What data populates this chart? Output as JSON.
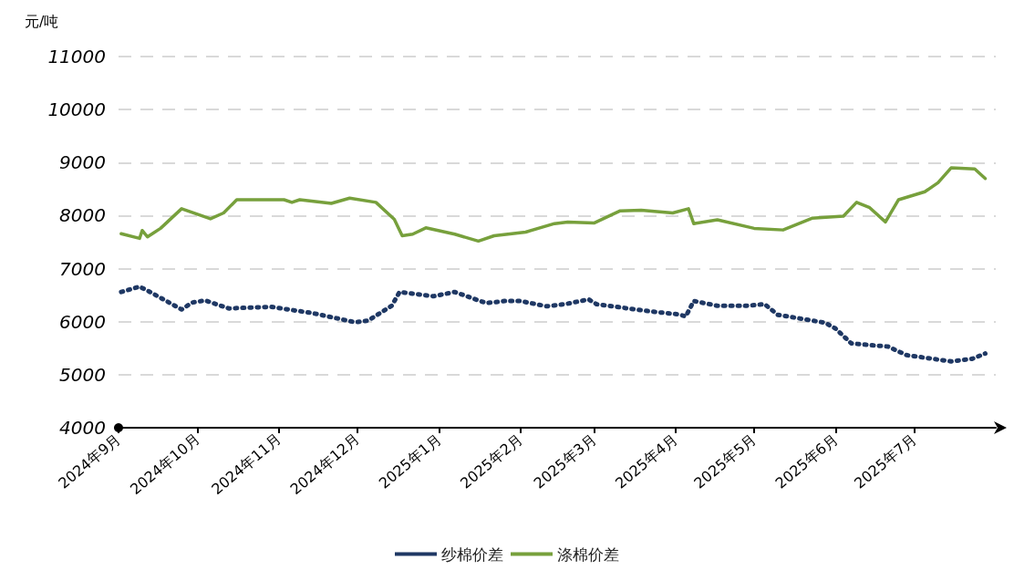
{
  "chart_data": {
    "type": "line",
    "ylabel": "元/吨",
    "ylim": [
      4000,
      11000
    ],
    "yticks": [
      4000,
      5000,
      6000,
      7000,
      8000,
      9000,
      10000,
      11000
    ],
    "xlim": [
      "2024-09-01",
      "2025-08-01"
    ],
    "xticks": [
      {
        "value": "2024-09-01",
        "label": "2024年9月"
      },
      {
        "value": "2024-10-01",
        "label": "2024年10月"
      },
      {
        "value": "2024-11-01",
        "label": "2024年11月"
      },
      {
        "value": "2024-12-01",
        "label": "2024年12月"
      },
      {
        "value": "2025-01-01",
        "label": "2025年1月"
      },
      {
        "value": "2025-02-01",
        "label": "2025年2月"
      },
      {
        "value": "2025-03-01",
        "label": "2025年3月"
      },
      {
        "value": "2025-04-01",
        "label": "2025年4月"
      },
      {
        "value": "2025-05-01",
        "label": "2025年5月"
      },
      {
        "value": "2025-06-01",
        "label": "2025年6月"
      },
      {
        "value": "2025-07-01",
        "label": "2025年7月"
      }
    ],
    "grid": "y",
    "legend": "bottom",
    "marker": "none",
    "series": [
      {
        "name": "纱棉价差",
        "color": "#1f3864",
        "line_style": "dotted",
        "x": [
          "2024-09-02",
          "2024-09-09",
          "2024-09-13",
          "2024-09-25",
          "2024-09-29",
          "2024-10-04",
          "2024-10-13",
          "2024-10-29",
          "2024-11-14",
          "2024-11-30",
          "2024-12-05",
          "2024-12-14",
          "2024-12-17",
          "2024-12-30",
          "2025-01-07",
          "2025-01-19",
          "2025-01-26",
          "2025-02-01",
          "2025-02-11",
          "2025-02-18",
          "2025-02-27",
          "2025-03-02",
          "2025-03-23",
          "2025-04-02",
          "2025-04-05",
          "2025-04-08",
          "2025-04-17",
          "2025-04-28",
          "2025-05-05",
          "2025-05-10",
          "2025-05-28",
          "2025-06-01",
          "2025-06-07",
          "2025-06-21",
          "2025-06-28",
          "2025-07-15",
          "2025-07-23",
          "2025-07-28"
        ],
        "values": [
          6560,
          6660,
          6560,
          6230,
          6360,
          6400,
          6250,
          6280,
          6160,
          5990,
          6020,
          6300,
          6560,
          6480,
          6560,
          6350,
          6390,
          6390,
          6290,
          6330,
          6420,
          6330,
          6190,
          6140,
          6100,
          6390,
          6300,
          6300,
          6330,
          6130,
          5980,
          5870,
          5590,
          5530,
          5370,
          5250,
          5300,
          5400
        ]
      },
      {
        "name": "涤棉价差",
        "color": "#77a03c",
        "line_style": "solid",
        "x": [
          "2024-09-02",
          "2024-09-09",
          "2024-09-10",
          "2024-09-12",
          "2024-09-17",
          "2024-09-25",
          "2024-10-06",
          "2024-10-11",
          "2024-10-16",
          "2024-11-03",
          "2024-11-06",
          "2024-11-09",
          "2024-11-21",
          "2024-11-28",
          "2024-12-08",
          "2024-12-15",
          "2024-12-18",
          "2024-12-22",
          "2024-12-27",
          "2025-01-07",
          "2025-01-16",
          "2025-01-22",
          "2025-02-03",
          "2025-02-14",
          "2025-02-19",
          "2025-03-01",
          "2025-03-11",
          "2025-03-19",
          "2025-03-31",
          "2025-04-06",
          "2025-04-08",
          "2025-04-17",
          "2025-05-01",
          "2025-05-12",
          "2025-05-23",
          "2025-06-04",
          "2025-06-09",
          "2025-06-14",
          "2025-06-20",
          "2025-06-25",
          "2025-07-05",
          "2025-07-10",
          "2025-07-15",
          "2025-07-24",
          "2025-07-28"
        ],
        "values": [
          7660,
          7570,
          7720,
          7600,
          7760,
          8130,
          7940,
          8050,
          8300,
          8300,
          8250,
          8300,
          8230,
          8330,
          8250,
          7930,
          7620,
          7650,
          7770,
          7650,
          7520,
          7620,
          7690,
          7850,
          7880,
          7860,
          8090,
          8100,
          8050,
          8130,
          7850,
          7920,
          7760,
          7730,
          7950,
          7990,
          8250,
          8150,
          7880,
          8300,
          8450,
          8620,
          8900,
          8880,
          8700
        ]
      }
    ]
  }
}
